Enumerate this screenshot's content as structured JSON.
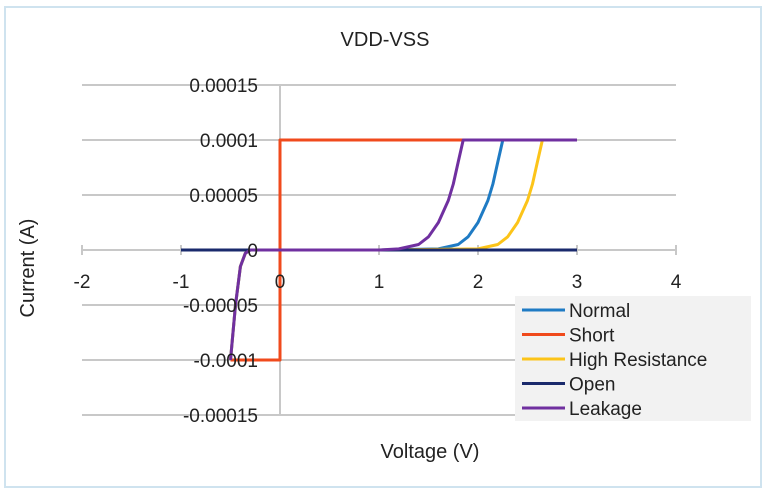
{
  "chart_data": {
    "type": "line",
    "title": "VDD-VSS",
    "xlabel": "Voltage (V)",
    "ylabel": "Current (A)",
    "xlim": [
      -2,
      4
    ],
    "ylim": [
      -0.00015,
      0.00015
    ],
    "x_ticks": [
      "-2",
      "-1",
      "0",
      "1",
      "2",
      "3",
      "4"
    ],
    "y_ticks": [
      "0.00015",
      "0.0001",
      "0.00005",
      "0",
      "-0.00005",
      "-0.0001",
      "-0.00015"
    ],
    "grid": true,
    "legend_position": "bottom-right",
    "series": [
      {
        "name": "Normal",
        "color": "#1f7bc4",
        "x": [
          -0.5,
          -0.45,
          -0.4,
          -0.35,
          -0.3,
          0,
          1,
          1.6,
          1.8,
          1.9,
          2.0,
          2.1,
          2.15,
          2.2,
          2.25,
          3
        ],
        "y": [
          -0.0001,
          -5e-05,
          -1.5e-05,
          -3e-06,
          0,
          0,
          0,
          1e-06,
          5e-06,
          1.2e-05,
          2.5e-05,
          4.5e-05,
          6e-05,
          8e-05,
          0.0001,
          0.0001
        ]
      },
      {
        "name": "Short",
        "color": "#f04a1c",
        "x": [
          -0.5,
          0,
          0,
          3
        ],
        "y": [
          -0.0001,
          -0.0001,
          0.0001,
          0.0001
        ]
      },
      {
        "name": "High Resistance",
        "color": "#fcc419",
        "x": [
          -0.5,
          -0.45,
          -0.4,
          -0.35,
          -0.3,
          0,
          1,
          2.0,
          2.2,
          2.3,
          2.4,
          2.5,
          2.55,
          2.6,
          2.65,
          3
        ],
        "y": [
          -0.0001,
          -5e-05,
          -1.5e-05,
          -3e-06,
          0,
          0,
          0,
          1e-06,
          5e-06,
          1.2e-05,
          2.5e-05,
          4.5e-05,
          6e-05,
          8e-05,
          0.0001,
          0.0001
        ]
      },
      {
        "name": "Open",
        "color": "#1a2a6c",
        "x": [
          -1,
          3
        ],
        "y": [
          0,
          0
        ]
      },
      {
        "name": "Leakage",
        "color": "#7030a0",
        "x": [
          -0.5,
          -0.45,
          -0.4,
          -0.35,
          -0.3,
          0,
          1,
          1.2,
          1.4,
          1.5,
          1.6,
          1.7,
          1.75,
          1.8,
          1.85,
          3
        ],
        "y": [
          -0.0001,
          -5e-05,
          -1.5e-05,
          -3e-06,
          0,
          0,
          0,
          1e-06,
          5e-06,
          1.2e-05,
          2.5e-05,
          4.5e-05,
          6e-05,
          8e-05,
          0.0001,
          0.0001
        ]
      }
    ]
  }
}
